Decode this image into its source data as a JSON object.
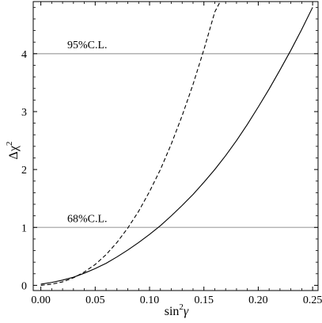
{
  "chart_data": {
    "type": "line",
    "xlabel": {
      "base": "sin",
      "sup": "2",
      "var": "γ"
    },
    "ylabel": {
      "base": "Δχ",
      "sup": "2"
    },
    "xlim": [
      -0.007,
      0.255
    ],
    "ylim": [
      -0.09,
      4.9
    ],
    "x_ticks": [
      0.0,
      0.05,
      0.1,
      0.15,
      0.2,
      0.25
    ],
    "x_tick_labels": [
      "0.00",
      "0.05",
      "0.10",
      "0.15",
      "0.20",
      "0.25"
    ],
    "y_ticks": [
      0,
      1,
      2,
      3,
      4
    ],
    "y_tick_labels": [
      "0",
      "1",
      "2",
      "3",
      "4"
    ],
    "grid": false,
    "series": [
      {
        "style": "solid",
        "color": "#000000",
        "x": [
          0.0,
          0.01,
          0.02,
          0.03,
          0.04,
          0.05,
          0.06,
          0.07,
          0.08,
          0.09,
          0.1,
          0.11,
          0.12,
          0.13,
          0.14,
          0.15,
          0.16,
          0.17,
          0.18,
          0.19,
          0.2,
          0.21,
          0.22,
          0.23,
          0.24,
          0.25
        ],
        "y": [
          0.02,
          0.05,
          0.09,
          0.14,
          0.21,
          0.29,
          0.38,
          0.49,
          0.61,
          0.74,
          0.88,
          1.03,
          1.2,
          1.38,
          1.57,
          1.78,
          2.0,
          2.24,
          2.5,
          2.78,
          3.08,
          3.39,
          3.72,
          4.06,
          4.42,
          4.8
        ]
      },
      {
        "style": "dashed",
        "color": "#000000",
        "x": [
          0.0,
          0.01,
          0.02,
          0.03,
          0.04,
          0.05,
          0.06,
          0.07,
          0.08,
          0.09,
          0.1,
          0.11,
          0.12,
          0.13,
          0.14,
          0.15,
          0.16,
          0.165
        ],
        "y": [
          0.0,
          0.02,
          0.06,
          0.13,
          0.23,
          0.36,
          0.53,
          0.74,
          0.99,
          1.28,
          1.62,
          2.0,
          2.44,
          2.93,
          3.47,
          4.07,
          4.72,
          4.9
        ]
      }
    ],
    "reference_lines": [
      {
        "y": 4,
        "label": "95%C.L.",
        "color": "#aaaaaa"
      },
      {
        "y": 1,
        "label": "68%C.L.",
        "color": "#aaaaaa"
      }
    ]
  }
}
